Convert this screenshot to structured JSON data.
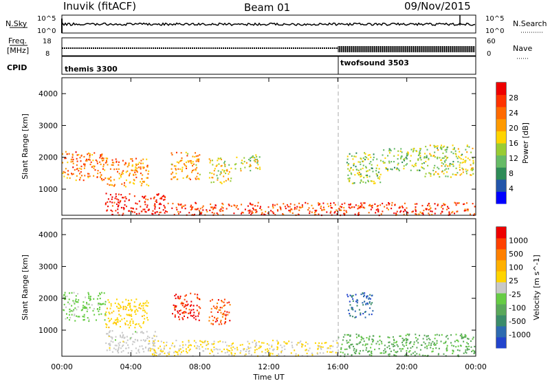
{
  "header": {
    "radar": "Inuvik (fitACF)",
    "beam": "Beam 01",
    "date": "09/Nov/2015"
  },
  "nsky_panel": {
    "left_label": "N.Sky",
    "left_ticks": [
      "10^5",
      "10^0"
    ],
    "right_ticks": [
      "10^5",
      "10^0"
    ],
    "right_label": "N.Search"
  },
  "freq_panel": {
    "left_label_1": "Freq.",
    "left_label_2": "[MHz]",
    "left_ticks": [
      "18",
      "8"
    ],
    "right_ticks": [
      "60",
      "0"
    ],
    "right_label": "Nave"
  },
  "cpid_panel": {
    "label": "CPID",
    "programs": [
      "themis 3300",
      "twofsound 3503"
    ]
  },
  "x_axis": {
    "label": "Time UT",
    "ticks": [
      "00:00",
      "04:00",
      "08:00",
      "12:00",
      "16:00",
      "20:00",
      "00:00"
    ]
  },
  "y_axis": {
    "label": "Slant Range [km]",
    "ticks": [
      "1000",
      "2000",
      "3000",
      "4000"
    ]
  },
  "power_colorbar": {
    "label": "Power [dB]",
    "ticks": [
      "4",
      "8",
      "12",
      "16",
      "20",
      "24",
      "28"
    ],
    "colors": [
      "#0000ff",
      "#2255aa",
      "#2e8b57",
      "#66bb66",
      "#99cc33",
      "#ffd400",
      "#ff9a00",
      "#ff6a00",
      "#ff3300",
      "#ee0000"
    ]
  },
  "velocity_colorbar": {
    "label": "Velocity [m s^-1]",
    "ticks": [
      "1000",
      "500",
      "100",
      "25",
      "-25",
      "-100",
      "-500",
      "-1000"
    ],
    "colors": [
      "#2244cc",
      "#2e6bb0",
      "#3b8c6a",
      "#5aa85a",
      "#66cc44",
      "#c8c8c8",
      "#ffd400",
      "#ffb000",
      "#ff8000",
      "#ff4000",
      "#ee0000"
    ]
  },
  "chart_data": [
    {
      "type": "heatmap",
      "title": "Power [dB]",
      "xlabel": "Time UT",
      "ylabel": "Slant Range [km]",
      "xlim": [
        0,
        24
      ],
      "ylim": [
        180,
        4500
      ],
      "zlim": [
        0,
        30
      ],
      "regions": [
        {
          "t": [
            0.0,
            2.5
          ],
          "r": [
            1300,
            2200
          ],
          "z": 22
        },
        {
          "t": [
            2.5,
            5.0
          ],
          "r": [
            1100,
            2000
          ],
          "z": 21
        },
        {
          "t": [
            6.3,
            8.0
          ],
          "r": [
            1300,
            2200
          ],
          "z": 20
        },
        {
          "t": [
            8.5,
            9.8
          ],
          "r": [
            1200,
            2000
          ],
          "z": 16
        },
        {
          "t": [
            10.0,
            11.5
          ],
          "r": [
            1600,
            2100
          ],
          "z": 14
        },
        {
          "t": [
            2.5,
            6.0
          ],
          "r": [
            200,
            900
          ],
          "z": 28
        },
        {
          "t": [
            6.0,
            24.0
          ],
          "r": [
            200,
            600
          ],
          "z": 25
        },
        {
          "t": [
            16.5,
            18.5
          ],
          "r": [
            1200,
            2200
          ],
          "z": 13
        },
        {
          "t": [
            18.5,
            21.0
          ],
          "r": [
            1600,
            2300
          ],
          "z": 12
        },
        {
          "t": [
            21.0,
            24.0
          ],
          "r": [
            1400,
            2400
          ],
          "z": 14
        }
      ]
    },
    {
      "type": "heatmap",
      "title": "Velocity [m s^-1]",
      "xlabel": "Time UT",
      "ylabel": "Slant Range [km]",
      "xlim": [
        0,
        24
      ],
      "ylim": [
        180,
        4500
      ],
      "zlim": [
        -1000,
        1000
      ],
      "regions": [
        {
          "t": [
            0.0,
            2.5
          ],
          "r": [
            1300,
            2200
          ],
          "z": -150
        },
        {
          "t": [
            2.5,
            5.0
          ],
          "r": [
            1100,
            2000
          ],
          "z": 200
        },
        {
          "t": [
            6.3,
            8.0
          ],
          "r": [
            1300,
            2200
          ],
          "z": 800
        },
        {
          "t": [
            8.5,
            9.8
          ],
          "r": [
            1200,
            2000
          ],
          "z": 700
        },
        {
          "t": [
            2.5,
            5.5
          ],
          "r": [
            300,
            1000
          ],
          "z": 0
        },
        {
          "t": [
            5.0,
            16.0
          ],
          "r": [
            200,
            700
          ],
          "z": 100
        },
        {
          "t": [
            16.0,
            24.0
          ],
          "r": [
            200,
            900
          ],
          "z": -300
        },
        {
          "t": [
            16.5,
            18.0
          ],
          "r": [
            1400,
            2200
          ],
          "z": -700
        }
      ]
    }
  ]
}
